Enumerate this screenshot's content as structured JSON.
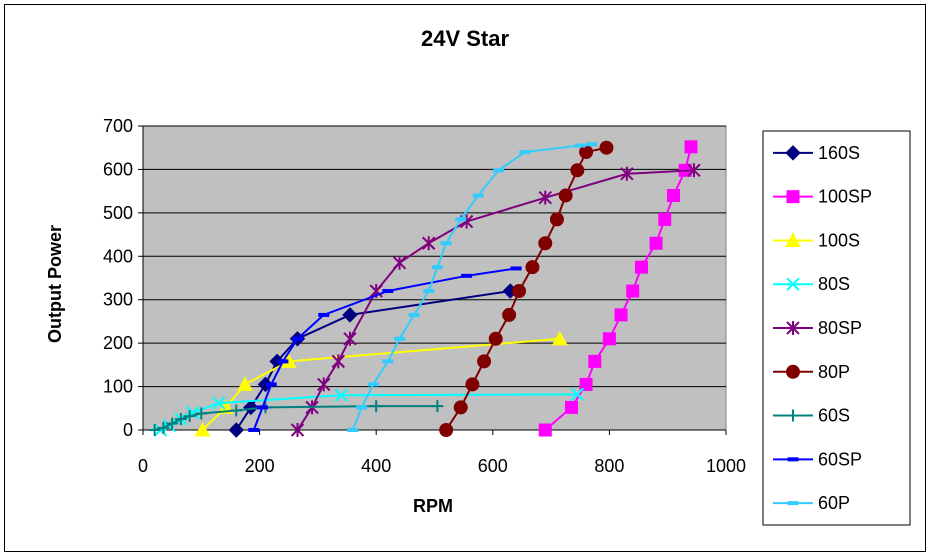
{
  "chart_data": {
    "type": "line",
    "title": "24V Star",
    "xlabel": "RPM",
    "ylabel": "Output Power",
    "xlim": [
      0,
      1000
    ],
    "ylim": [
      0,
      700
    ],
    "xticks": [
      0,
      200,
      400,
      600,
      800,
      1000
    ],
    "yticks": [
      0,
      100,
      200,
      300,
      400,
      500,
      600,
      700
    ],
    "grid": "horizontal",
    "legend_position": "right",
    "plot_background": "#c0c0c0",
    "series": [
      {
        "name": "160S",
        "color": "#000080",
        "marker": "diamond",
        "x": [
          160,
          185,
          210,
          230,
          265,
          355,
          630
        ],
        "y": [
          0,
          52,
          105,
          158,
          210,
          265,
          320
        ]
      },
      {
        "name": "100SP",
        "color": "#ff00ff",
        "marker": "square",
        "x": [
          690,
          735,
          760,
          775,
          800,
          820,
          840,
          855,
          880,
          895,
          910,
          930,
          940
        ],
        "y": [
          0,
          52,
          105,
          158,
          210,
          265,
          320,
          375,
          430,
          485,
          540,
          598,
          652
        ]
      },
      {
        "name": "100S",
        "color": "#ffff00",
        "marker": "triangle",
        "x": [
          102,
          142,
          175,
          250,
          715
        ],
        "y": [
          0,
          52,
          105,
          158,
          210
        ]
      },
      {
        "name": "80S",
        "color": "#00ffff",
        "marker": "x",
        "x": [
          30,
          45,
          65,
          85,
          130,
          340,
          745
        ],
        "y": [
          0,
          10,
          25,
          40,
          62,
          80,
          82
        ]
      },
      {
        "name": "80SP",
        "color": "#800080",
        "marker": "star",
        "x": [
          265,
          290,
          310,
          335,
          355,
          400,
          440,
          490,
          555,
          690,
          830,
          945
        ],
        "y": [
          0,
          52,
          105,
          158,
          210,
          320,
          385,
          430,
          480,
          535,
          590,
          598
        ]
      },
      {
        "name": "80P",
        "color": "#800000",
        "marker": "circle",
        "x": [
          520,
          545,
          565,
          585,
          605,
          628,
          645,
          668,
          690,
          710,
          725,
          745,
          760,
          795
        ],
        "y": [
          0,
          52,
          105,
          158,
          210,
          265,
          320,
          375,
          430,
          485,
          540,
          598,
          640,
          650
        ]
      },
      {
        "name": "60S",
        "color": "#008080",
        "marker": "plus",
        "x": [
          20,
          35,
          50,
          65,
          80,
          100,
          160,
          210,
          400,
          505
        ],
        "y": [
          0,
          5,
          15,
          25,
          32,
          38,
          45,
          52,
          55,
          55
        ]
      },
      {
        "name": "60SP",
        "color": "#0000ff",
        "marker": "dash",
        "x": [
          190,
          205,
          220,
          240,
          265,
          310,
          420,
          555,
          640
        ],
        "y": [
          0,
          52,
          105,
          158,
          210,
          265,
          320,
          355,
          372
        ]
      },
      {
        "name": "60P",
        "color": "#33ccff",
        "marker": "dash",
        "x": [
          360,
          375,
          395,
          420,
          440,
          465,
          490,
          505,
          520,
          545,
          575,
          610,
          655,
          750,
          770
        ],
        "y": [
          0,
          52,
          105,
          158,
          210,
          265,
          320,
          375,
          430,
          485,
          540,
          598,
          640,
          655,
          658
        ]
      }
    ]
  }
}
